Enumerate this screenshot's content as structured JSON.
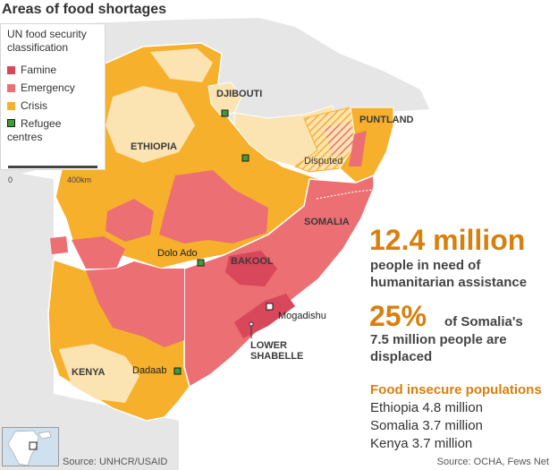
{
  "title": "Areas of food shortages",
  "legend": {
    "heading": "UN food security classification",
    "items": [
      {
        "label": "Famine",
        "color": "#d9475a"
      },
      {
        "label": "Emergency",
        "color": "#eb6f73"
      },
      {
        "label": "Crisis",
        "color": "#f6b02c"
      }
    ],
    "refugee_label": "Refugee centres",
    "refugee_color": "#3f9c3a",
    "scale_start": "0",
    "scale_end": "400km"
  },
  "map_labels": {
    "djibouti": "DJIBOUTI",
    "puntland": "PUNTLAND",
    "ethiopia": "ETHIOPIA",
    "disputed": "Disputed",
    "somalia": "SOMALIA",
    "dolo_ado": "Dolo Ado",
    "bakool": "BAKOOL",
    "mogadishu": "Mogadishu",
    "lower_shabelle": "LOWER SHABELLE",
    "kenya": "KENYA",
    "dadaab": "Dadaab"
  },
  "stats": {
    "people_in_need_number": "12.4 million",
    "people_in_need_desc": "people in need of humanitarian assistance",
    "displaced_percent": "25%",
    "displaced_desc_part1": "of Somalia's",
    "displaced_desc_part2": "7.5 million people are displaced"
  },
  "food_insecure": {
    "heading": "Food insecure populations",
    "rows": [
      {
        "country": "Ethiopia",
        "value": "4.8 million"
      },
      {
        "country": "Somalia",
        "value": "3.7 million"
      },
      {
        "country": "Kenya",
        "value": "3.7 million"
      }
    ]
  },
  "sources": {
    "left": "Source: UNHCR/USAID",
    "right": "Source: OCHA, Fews Net"
  },
  "colors": {
    "sea": "#ffffff",
    "land_other": "#e6e6e6",
    "not_classified": "#fbe3b2",
    "crisis": "#f6b02c",
    "emergency": "#eb6f73",
    "famine": "#d9475a",
    "accent_text": "#d87f0e"
  }
}
